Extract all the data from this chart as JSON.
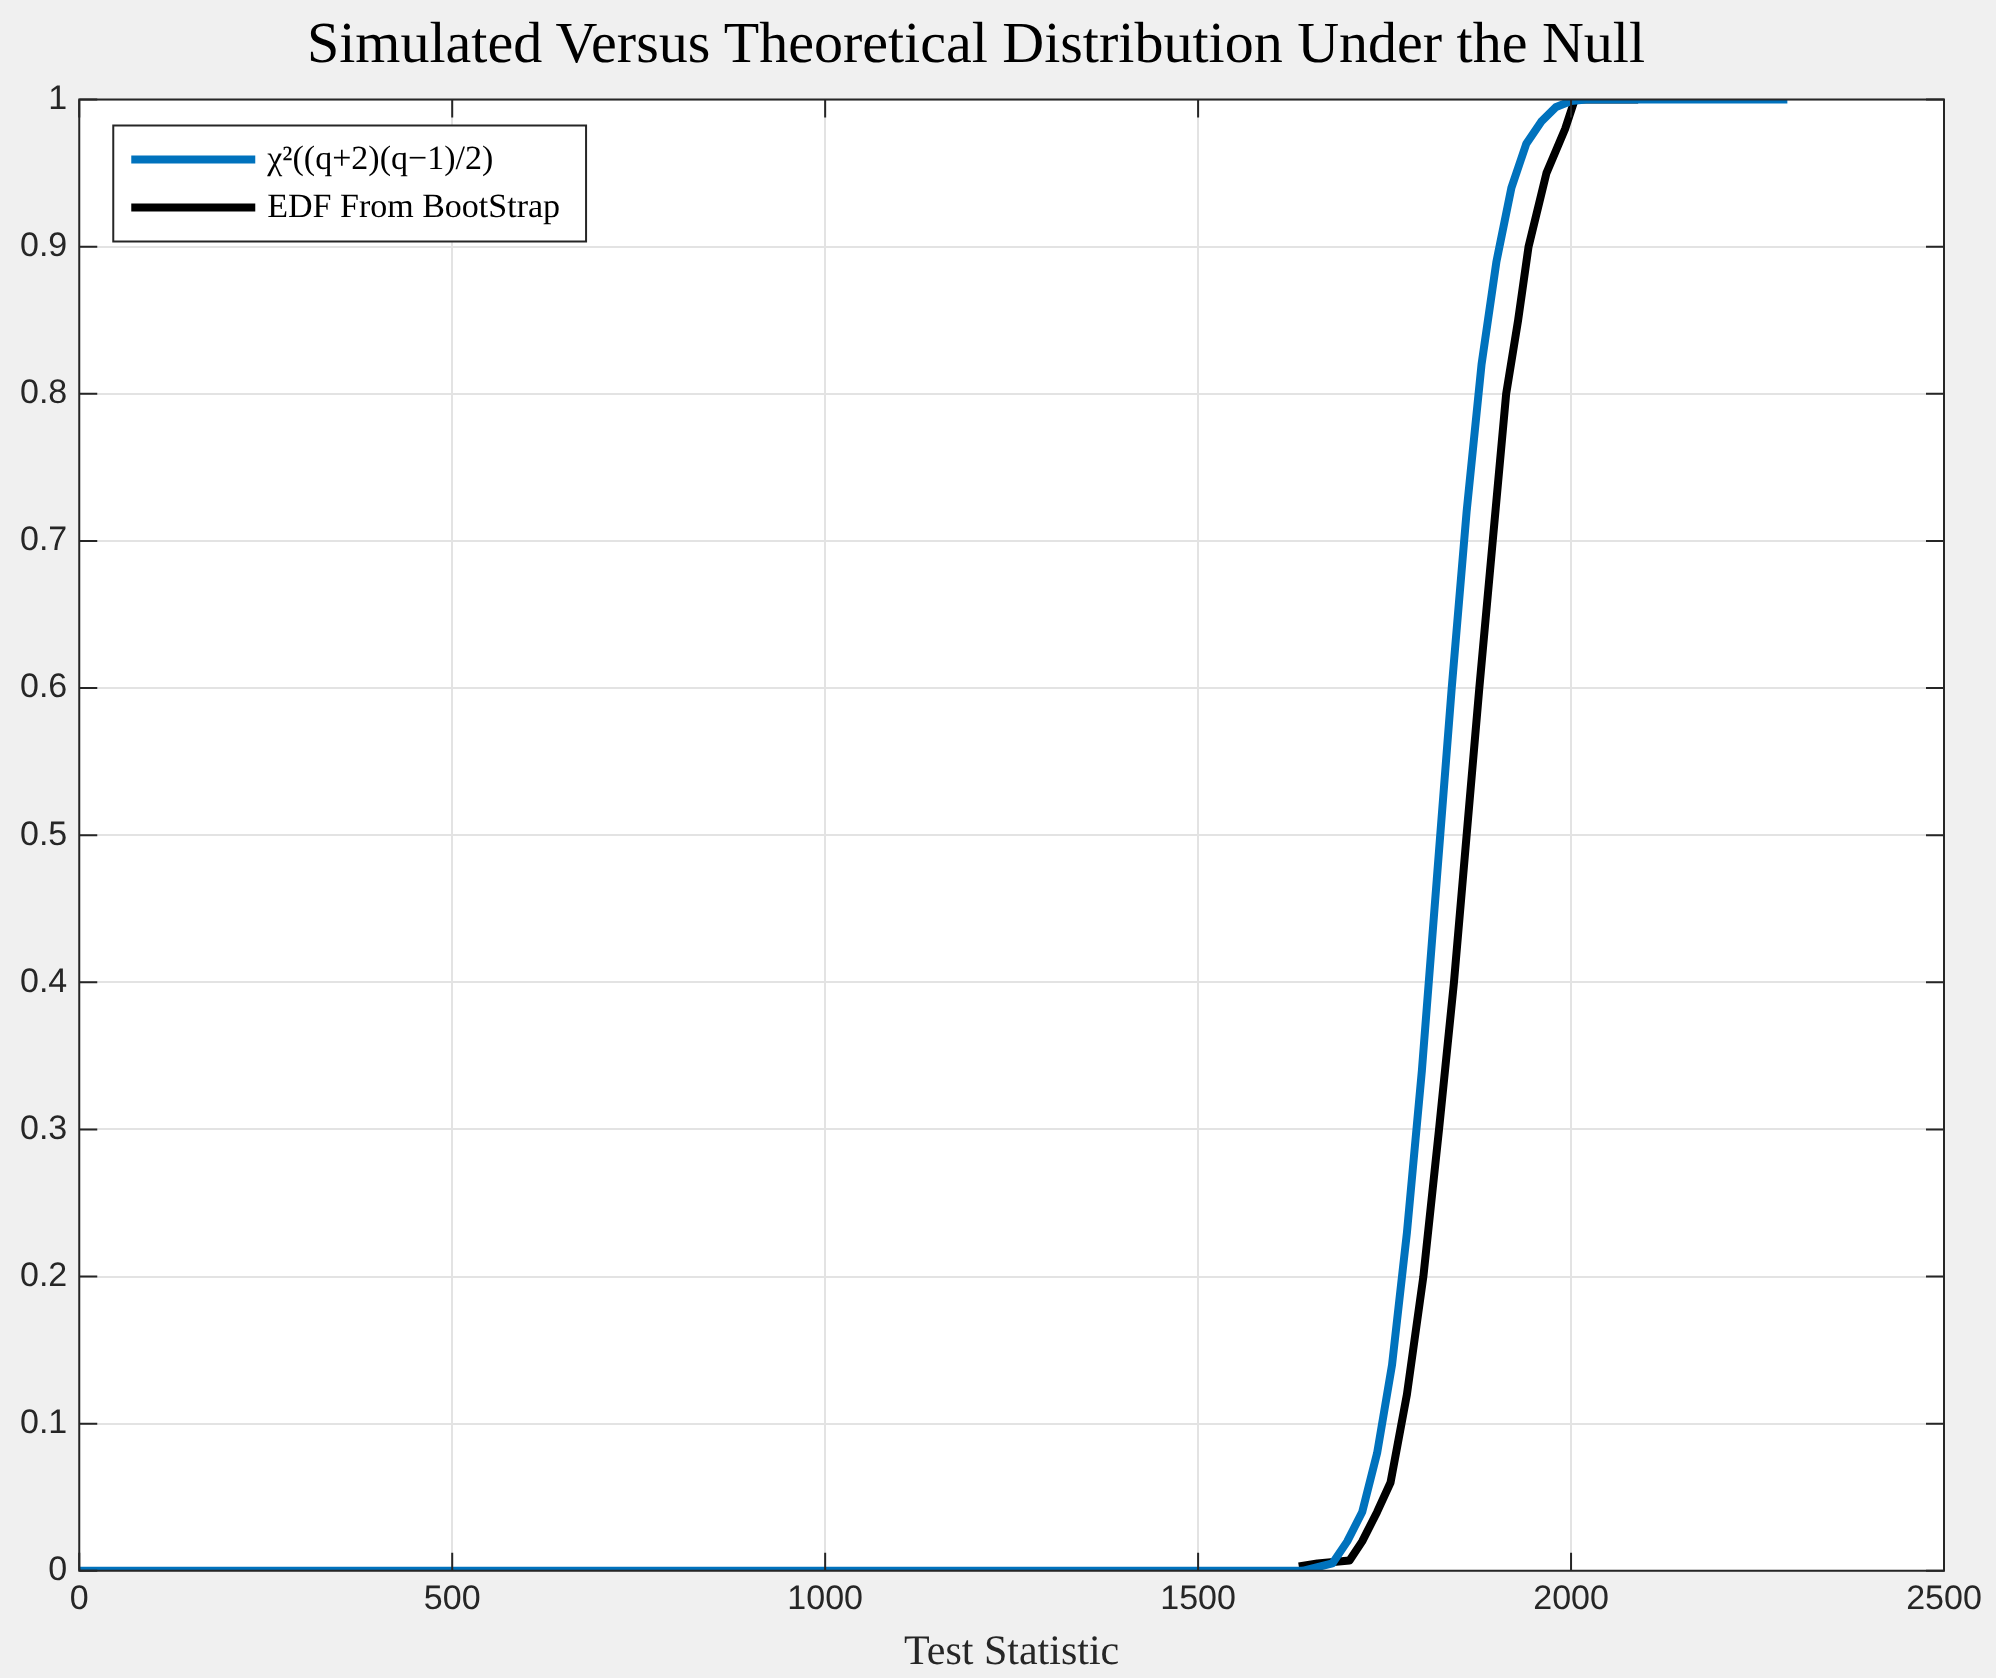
{
  "chart_data": {
    "type": "line",
    "title": "Simulated Versus Theoretical Distribution Under the Null",
    "xlabel": "Test Statistic",
    "xlim": [
      0,
      2500
    ],
    "xticks": [
      0,
      500,
      1000,
      1500,
      2000,
      2500
    ],
    "ylim": [
      0,
      1
    ],
    "yticks": [
      0,
      0.1,
      0.2,
      0.3,
      0.4,
      0.5,
      0.6,
      0.7,
      0.8,
      0.9,
      1
    ],
    "grid": true,
    "legend": "top left",
    "marker": "none",
    "line_style": "solid",
    "series": [
      {
        "name": "χ²((q+2)(q−1)/2)",
        "color": "#0072bd",
        "x": [
          0,
          1640,
          1680,
          1700,
          1720,
          1740,
          1760,
          1780,
          1800,
          1820,
          1840,
          1860,
          1880,
          1900,
          1920,
          1940,
          1960,
          1980,
          2000,
          2020,
          2290
        ],
        "values": [
          0,
          0,
          0.005,
          0.02,
          0.04,
          0.08,
          0.14,
          0.23,
          0.34,
          0.47,
          0.6,
          0.72,
          0.82,
          0.89,
          0.94,
          0.97,
          0.985,
          0.995,
          0.999,
          1,
          1
        ]
      },
      {
        "name": "EDF From BootStrap",
        "color": "#000000",
        "x": [
          1635,
          1660,
          1703,
          1720,
          1740,
          1758,
          1780,
          1802,
          1823,
          1843,
          1860,
          1877,
          1895,
          1913,
          1929,
          1943,
          1967,
          1992,
          2005,
          2090
        ],
        "values": [
          0.003,
          0.005,
          0.007,
          0.02,
          0.04,
          0.06,
          0.12,
          0.2,
          0.3,
          0.4,
          0.5,
          0.6,
          0.7,
          0.8,
          0.85,
          0.9,
          0.95,
          0.98,
          1,
          1
        ]
      }
    ]
  }
}
